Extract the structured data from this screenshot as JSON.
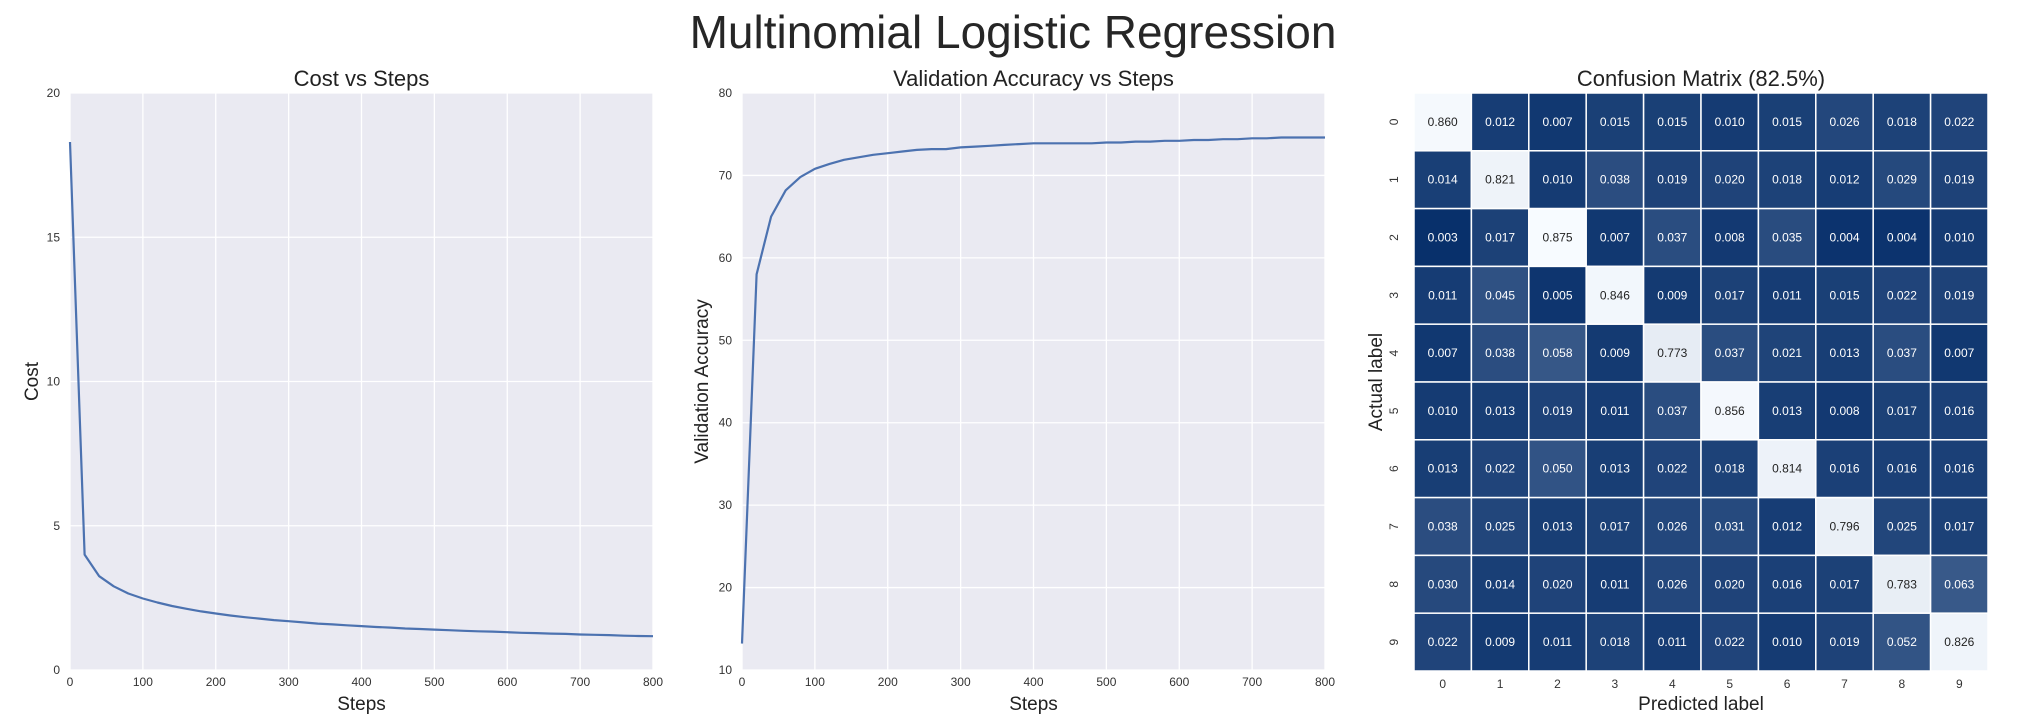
{
  "figure_title": "Multinomial Logistic Regression",
  "chart_data": [
    {
      "type": "line",
      "title": "Cost vs Steps",
      "xlabel": "Steps",
      "ylabel": "Cost",
      "xlim": [
        0,
        800
      ],
      "ylim": [
        0,
        20
      ],
      "xticks": [
        0,
        100,
        200,
        300,
        400,
        500,
        600,
        700,
        800
      ],
      "yticks": [
        0,
        5,
        10,
        15,
        20
      ],
      "grid": true,
      "background": "#eaeaf2",
      "line_color": "#4c72b0",
      "series": [
        {
          "x": [
            0,
            20,
            40,
            60,
            80,
            100,
            120,
            140,
            160,
            180,
            200,
            220,
            240,
            260,
            280,
            300,
            320,
            340,
            360,
            380,
            400,
            420,
            440,
            460,
            480,
            500,
            520,
            540,
            560,
            580,
            600,
            620,
            640,
            660,
            680,
            700,
            720,
            740,
            760,
            780,
            800
          ],
          "values": [
            18.3,
            4.0,
            3.25,
            2.9,
            2.65,
            2.48,
            2.34,
            2.22,
            2.12,
            2.03,
            1.96,
            1.89,
            1.83,
            1.78,
            1.73,
            1.69,
            1.65,
            1.61,
            1.58,
            1.55,
            1.52,
            1.49,
            1.47,
            1.44,
            1.42,
            1.4,
            1.38,
            1.36,
            1.34,
            1.33,
            1.31,
            1.29,
            1.28,
            1.26,
            1.25,
            1.23,
            1.22,
            1.21,
            1.19,
            1.18,
            1.17
          ]
        }
      ]
    },
    {
      "type": "line",
      "title": "Validation Accuracy vs Steps",
      "xlabel": "Steps",
      "ylabel": "Validation Accuracy",
      "xlim": [
        0,
        800
      ],
      "ylim": [
        10,
        80
      ],
      "xticks": [
        0,
        100,
        200,
        300,
        400,
        500,
        600,
        700,
        800
      ],
      "yticks": [
        10,
        20,
        30,
        40,
        50,
        60,
        70,
        80
      ],
      "grid": true,
      "background": "#eaeaf2",
      "line_color": "#4c72b0",
      "series": [
        {
          "x": [
            0,
            20,
            40,
            60,
            80,
            100,
            120,
            140,
            160,
            180,
            200,
            220,
            240,
            260,
            280,
            300,
            320,
            340,
            360,
            380,
            400,
            420,
            440,
            460,
            480,
            500,
            520,
            540,
            560,
            580,
            600,
            620,
            640,
            660,
            680,
            700,
            720,
            740,
            760,
            780,
            800
          ],
          "values": [
            13.2,
            58.0,
            65.0,
            68.2,
            69.8,
            70.8,
            71.4,
            71.9,
            72.2,
            72.5,
            72.7,
            72.9,
            73.1,
            73.2,
            73.2,
            73.4,
            73.5,
            73.6,
            73.7,
            73.8,
            73.9,
            73.9,
            73.9,
            73.9,
            73.9,
            74.0,
            74.0,
            74.1,
            74.1,
            74.2,
            74.2,
            74.3,
            74.3,
            74.4,
            74.4,
            74.5,
            74.5,
            74.6,
            74.6,
            74.6,
            74.6
          ]
        }
      ]
    },
    {
      "type": "heatmap",
      "title": "Confusion Matrix (82.5%)",
      "xlabel": "Predicted label",
      "ylabel": "Actual label",
      "x_categories": [
        "0",
        "1",
        "2",
        "3",
        "4",
        "5",
        "6",
        "7",
        "8",
        "9"
      ],
      "y_categories": [
        "0",
        "1",
        "2",
        "3",
        "4",
        "5",
        "6",
        "7",
        "8",
        "9"
      ],
      "colormap": "Blues_r",
      "color_low": "#08306b",
      "color_high": "#f7fbff",
      "values": [
        [
          0.86,
          0.012,
          0.007,
          0.015,
          0.015,
          0.01,
          0.015,
          0.026,
          0.018,
          0.022
        ],
        [
          0.014,
          0.821,
          0.01,
          0.038,
          0.019,
          0.02,
          0.018,
          0.012,
          0.029,
          0.019
        ],
        [
          0.003,
          0.017,
          0.875,
          0.007,
          0.037,
          0.008,
          0.035,
          0.004,
          0.004,
          0.01
        ],
        [
          0.011,
          0.045,
          0.005,
          0.846,
          0.009,
          0.017,
          0.011,
          0.015,
          0.022,
          0.019
        ],
        [
          0.007,
          0.038,
          0.058,
          0.009,
          0.773,
          0.037,
          0.021,
          0.013,
          0.037,
          0.007
        ],
        [
          0.01,
          0.013,
          0.019,
          0.011,
          0.037,
          0.856,
          0.013,
          0.008,
          0.017,
          0.016
        ],
        [
          0.013,
          0.022,
          0.05,
          0.013,
          0.022,
          0.018,
          0.814,
          0.016,
          0.016,
          0.016
        ],
        [
          0.038,
          0.025,
          0.013,
          0.017,
          0.026,
          0.031,
          0.012,
          0.796,
          0.025,
          0.017
        ],
        [
          0.03,
          0.014,
          0.02,
          0.011,
          0.026,
          0.02,
          0.016,
          0.017,
          0.783,
          0.063
        ],
        [
          0.022,
          0.009,
          0.011,
          0.018,
          0.011,
          0.022,
          0.01,
          0.019,
          0.052,
          0.826
        ]
      ]
    }
  ]
}
